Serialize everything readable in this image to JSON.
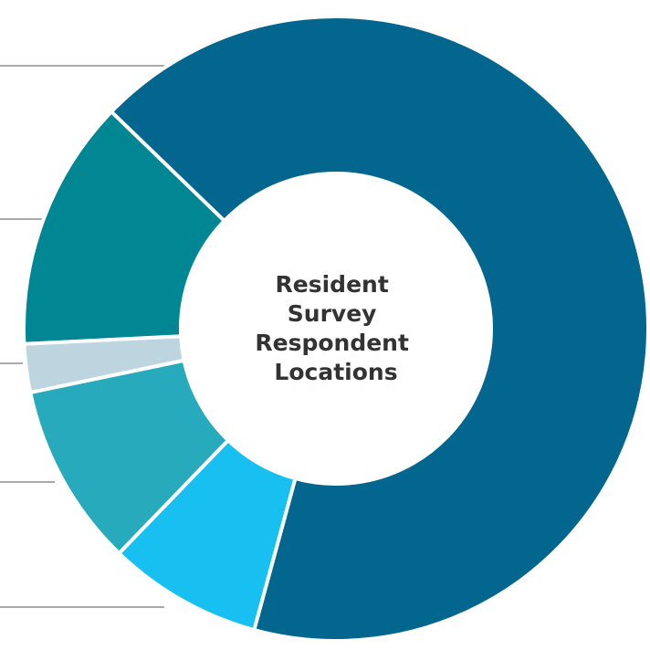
{
  "chart_data": {
    "type": "donut",
    "title": "Resident Survey Respondent Locations",
    "series": [
      {
        "values": [
          67,
          8,
          9.5,
          2.5,
          13
        ],
        "colors": [
          "#02668f",
          "#17c0f0",
          "#27aabb",
          "#bdd5de",
          "#008793"
        ]
      }
    ]
  }
}
